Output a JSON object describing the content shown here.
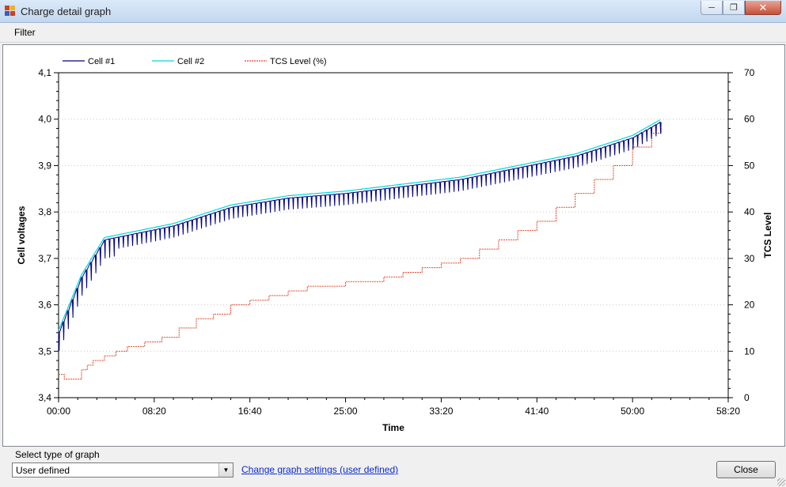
{
  "window": {
    "title": "Charge detail graph",
    "controls": [
      "minimize",
      "maximize",
      "close"
    ]
  },
  "menu": {
    "items": [
      "Filter"
    ]
  },
  "chart_data": {
    "type": "line",
    "x_ticks": [
      "00:00",
      "08:20",
      "16:40",
      "25:00",
      "33:20",
      "41:40",
      "50:00",
      "58:20"
    ],
    "x_range_seconds": [
      0,
      3500
    ],
    "xlabel": "Time",
    "ylabel": "Cell voltages",
    "y2label": "TCS Level",
    "ylim": [
      3.4,
      4.1
    ],
    "y_ticks": [
      "3,4",
      "3,5",
      "3,6",
      "3,7",
      "3,8",
      "3,9",
      "4,0",
      "4,1"
    ],
    "y2lim": [
      0,
      70
    ],
    "y2_ticks": [
      "0",
      "10",
      "20",
      "30",
      "40",
      "50",
      "60",
      "70"
    ],
    "legend_position": "top-left",
    "grid": "dotted horizontal",
    "colors": {
      "cell1": "#000080",
      "cell2": "#00d8d8",
      "tcs": "#e0482c"
    },
    "series": [
      {
        "name": "Cell #1",
        "axis": "left",
        "style": "solid",
        "x": [
          0,
          60,
          120,
          180,
          240,
          300,
          600,
          900,
          1200,
          1500,
          1800,
          2100,
          2400,
          2700,
          3000,
          3150
        ],
        "values": [
          3.54,
          3.6,
          3.66,
          3.7,
          3.74,
          3.745,
          3.77,
          3.81,
          3.83,
          3.84,
          3.855,
          3.87,
          3.895,
          3.92,
          3.96,
          3.995
        ],
        "dip": 0.025
      },
      {
        "name": "Cell #2",
        "axis": "left",
        "style": "solid",
        "x": [
          0,
          60,
          120,
          180,
          240,
          300,
          600,
          900,
          1200,
          1500,
          1800,
          2100,
          2400,
          2700,
          3000,
          3150
        ],
        "values": [
          3.545,
          3.605,
          3.665,
          3.705,
          3.745,
          3.75,
          3.775,
          3.815,
          3.835,
          3.845,
          3.86,
          3.875,
          3.9,
          3.925,
          3.965,
          4.0
        ]
      },
      {
        "name": "TCS Level (%)",
        "axis": "right",
        "style": "dotted-step",
        "x": [
          0,
          30,
          90,
          120,
          150,
          180,
          240,
          300,
          360,
          450,
          540,
          630,
          720,
          810,
          900,
          1000,
          1100,
          1200,
          1300,
          1400,
          1500,
          1600,
          1700,
          1800,
          1900,
          2000,
          2100,
          2200,
          2300,
          2400,
          2500,
          2600,
          2700,
          2800,
          2900,
          3000,
          3100,
          3150
        ],
        "values": [
          5,
          4,
          4,
          6,
          7,
          8,
          9,
          10,
          11,
          12,
          13,
          15,
          17,
          18,
          20,
          21,
          22,
          23,
          24,
          24,
          25,
          25,
          26,
          27,
          28,
          29,
          30,
          32,
          34,
          36,
          38,
          41,
          44,
          47,
          50,
          54,
          57,
          58
        ]
      }
    ]
  },
  "footer": {
    "graph_type_label": "Select type of graph",
    "graph_type_value": "User defined",
    "settings_link": "Change graph settings (user defined)",
    "close_label": "Close"
  }
}
